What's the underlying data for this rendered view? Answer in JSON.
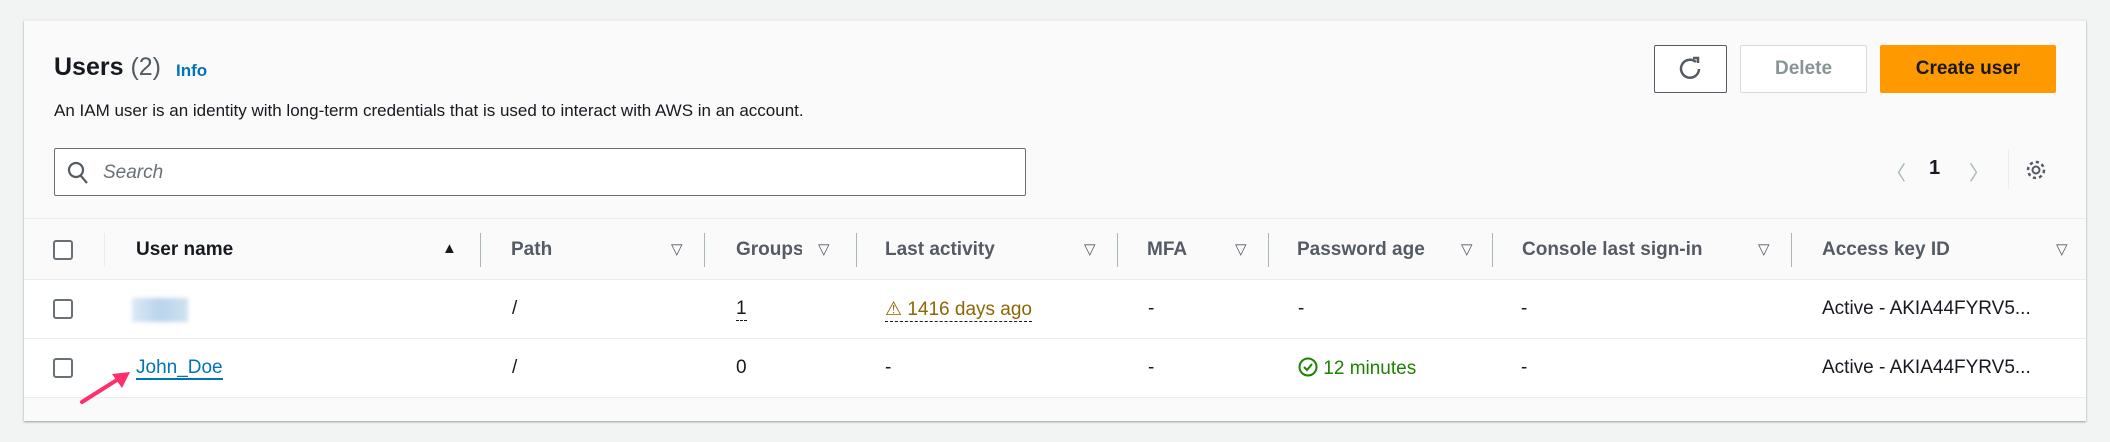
{
  "header": {
    "title": "Users",
    "count": "(2)",
    "info": "Info",
    "description": "An IAM user is an identity with long-term credentials that is used to interact with AWS in an account."
  },
  "toolbar": {
    "refresh_icon": "refresh-icon",
    "delete_label": "Delete",
    "create_label": "Create user"
  },
  "search": {
    "placeholder": "Search"
  },
  "pagination": {
    "page": "1"
  },
  "columns": [
    "User name",
    "Path",
    "Groups",
    "Last activity",
    "MFA",
    "Password age",
    "Console last sign-in",
    "Access key ID"
  ],
  "rows": [
    {
      "user": "",
      "path": "/",
      "groups": "1",
      "last_activity": "1416 days ago",
      "mfa": "-",
      "password_age": "-",
      "console": "-",
      "access_key": "Active - AKIA44FYRV5..."
    },
    {
      "user": "John_Doe",
      "path": "/",
      "groups": "0",
      "last_activity": "-",
      "mfa": "-",
      "password_age": "12 minutes",
      "console": "-",
      "access_key": "Active - AKIA44FYRV5..."
    }
  ],
  "colors": {
    "accent": "#ff9900",
    "link": "#0073bb",
    "warning": "#8d6605",
    "success": "#1d8102",
    "annotation_arrow": "#ff2e6e"
  }
}
